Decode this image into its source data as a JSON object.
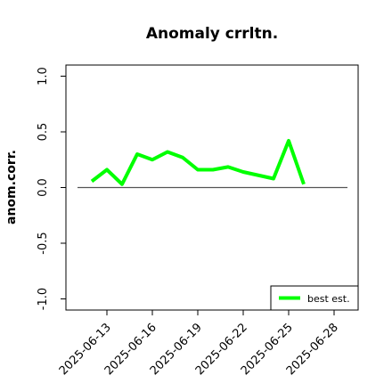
{
  "chart_data": {
    "type": "line",
    "title": "Anomaly crrltn.",
    "y_label": "anom.corr.",
    "x": [
      "2025-06-12",
      "2025-06-13",
      "2025-06-14",
      "2025-06-15",
      "2025-06-16",
      "2025-06-17",
      "2025-06-18",
      "2025-06-19",
      "2025-06-20",
      "2025-06-21",
      "2025-06-22",
      "2025-06-23",
      "2025-06-24",
      "2025-06-25",
      "2025-06-26"
    ],
    "series": [
      {
        "name": "best est.",
        "color": "#00ff00",
        "values": [
          0.056,
          0.16,
          0.03,
          0.3,
          0.25,
          0.32,
          0.27,
          0.16,
          0.16,
          0.185,
          0.14,
          0.11,
          0.08,
          0.42,
          0.03
        ]
      }
    ],
    "xlim": [
      "2025-06-10",
      "2025-06-30"
    ],
    "xticks": [
      "2025-06-13",
      "2025-06-16",
      "2025-06-19",
      "2025-06-22",
      "2025-06-25",
      "2025-06-28"
    ],
    "highlight_xtick": "2025-06-19",
    "highlight_color": "#228b22",
    "ylim": [
      -1.1,
      1.1
    ],
    "yticks": [
      {
        "value": -1,
        "label": "-1.0"
      },
      -0.5,
      {
        "value": 0,
        "label": "0.0"
      },
      0.5,
      {
        "value": 1,
        "label": "1.0"
      }
    ],
    "hline": 0,
    "legend": "bottomright"
  }
}
